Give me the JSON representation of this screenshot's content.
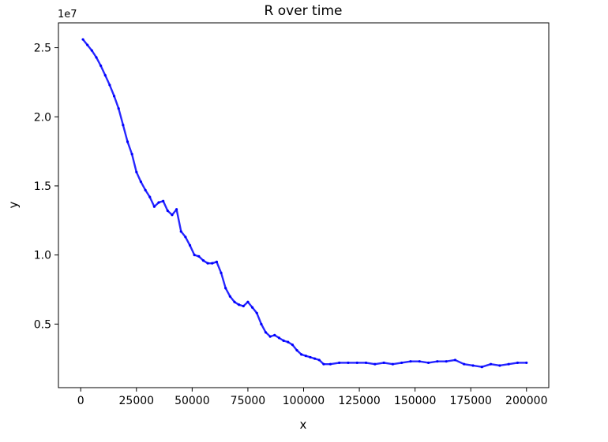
{
  "chart_data": {
    "type": "line",
    "title": "R over time",
    "xlabel": "x",
    "ylabel": "y",
    "y_offset_label": "1e7",
    "xlim": [
      -10000,
      210000
    ],
    "ylim": [
      400000,
      26800000
    ],
    "x_ticks": [
      0,
      25000,
      50000,
      75000,
      100000,
      125000,
      150000,
      175000,
      200000
    ],
    "x_tick_labels": [
      "0",
      "25000",
      "50000",
      "75000",
      "100000",
      "125000",
      "150000",
      "175000",
      "200000"
    ],
    "y_ticks": [
      5000000,
      10000000,
      15000000,
      20000000,
      25000000
    ],
    "y_tick_labels": [
      "0.5",
      "1.0",
      "1.5",
      "2.0",
      "2.5"
    ],
    "grid": false,
    "series": [
      {
        "color": "#0000ff",
        "marker": "small dots",
        "x": [
          1000,
          3000,
          5000,
          7000,
          9000,
          11000,
          13000,
          15000,
          17000,
          19000,
          21000,
          23000,
          25000,
          27000,
          29000,
          31000,
          33000,
          35000,
          37000,
          39000,
          41000,
          43000,
          45000,
          47000,
          49000,
          51000,
          53000,
          55000,
          57000,
          59000,
          61000,
          63000,
          65000,
          67000,
          69000,
          71000,
          73000,
          75000,
          77000,
          79000,
          81000,
          83000,
          85000,
          87000,
          89000,
          91000,
          93000,
          95000,
          97000,
          99000,
          101000,
          103000,
          105000,
          107000,
          109000,
          112000,
          116000,
          120000,
          124000,
          128000,
          132000,
          136000,
          140000,
          144000,
          148000,
          152000,
          156000,
          160000,
          164000,
          168000,
          172000,
          176000,
          180000,
          184000,
          188000,
          192000,
          196000,
          200000
        ],
        "y": [
          25600000,
          25200000,
          24800000,
          24300000,
          23700000,
          23000000,
          22300000,
          21500000,
          20600000,
          19400000,
          18200000,
          17300000,
          16000000,
          15300000,
          14700000,
          14200000,
          13500000,
          13800000,
          13900000,
          13200000,
          12900000,
          13300000,
          11700000,
          11300000,
          10700000,
          10000000,
          9900000,
          9600000,
          9400000,
          9400000,
          9500000,
          8700000,
          7600000,
          7000000,
          6600000,
          6400000,
          6300000,
          6600000,
          6200000,
          5800000,
          5000000,
          4400000,
          4100000,
          4200000,
          4000000,
          3800000,
          3700000,
          3500000,
          3100000,
          2800000,
          2700000,
          2600000,
          2500000,
          2400000,
          2100000,
          2100000,
          2200000,
          2200000,
          2200000,
          2200000,
          2100000,
          2200000,
          2100000,
          2200000,
          2300000,
          2300000,
          2200000,
          2300000,
          2300000,
          2400000,
          2100000,
          2000000,
          1900000,
          2100000,
          2000000,
          2100000,
          2200000,
          2200000
        ]
      }
    ]
  }
}
